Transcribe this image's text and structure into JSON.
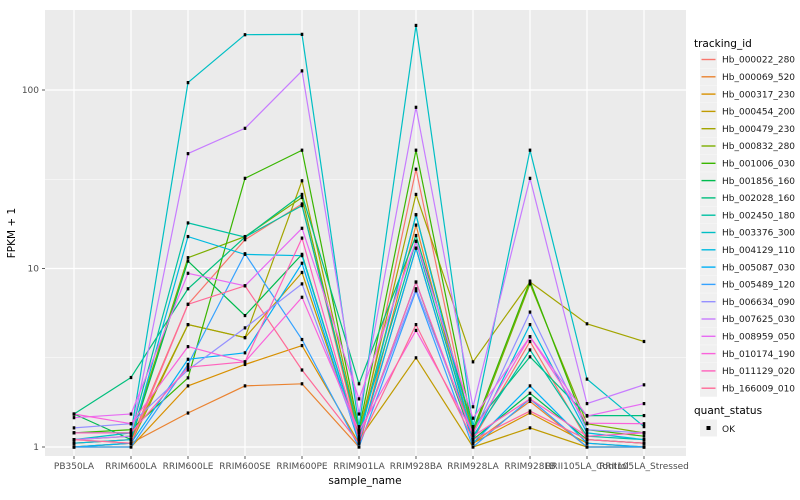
{
  "figure": {
    "legend": {
      "tracking_title": "tracking_id",
      "quant_title": "quant_status",
      "quant_items": [
        {
          "label": "OK",
          "marker": "black-square"
        }
      ]
    },
    "colors": {
      "panel_bg": "#EBEBEB",
      "grid": "#FFFFFF",
      "tick_text": "#4D4D4D",
      "point": "#000000",
      "legend_key_bg": "#F0F0F0"
    }
  },
  "chart_data": {
    "type": "line",
    "title": "",
    "xlabel": "sample_name",
    "ylabel": "FPKM + 1",
    "y_scale": "log10",
    "ylim": [
      1,
      280
    ],
    "y_ticks": [
      1,
      10,
      100
    ],
    "y_minor_ticks": [
      3.162,
      31.62
    ],
    "grid": true,
    "legend_position": "right",
    "point_marker": "small black square (quant_status = OK)",
    "categories": [
      "PB350LA",
      "RRIM600LA",
      "RRIM600LE",
      "RRIM600SE",
      "RRIM600PE",
      "RRIM901LA",
      "RRIM928BA",
      "RRIM928LA",
      "RRIM928LB",
      "RRII105LA_Control",
      "RRII105LA_Stressed"
    ],
    "series": [
      {
        "name": "Hb_000022_280",
        "color": "#F8766D",
        "values": [
          1.05,
          1.1,
          6.3,
          14.5,
          23,
          1.1,
          36,
          1.1,
          3.9,
          1.1,
          1.05
        ]
      },
      {
        "name": "Hb_000069_520",
        "color": "#EA8331",
        "values": [
          1.0,
          1.05,
          1.55,
          2.2,
          2.26,
          1.0,
          17.5,
          1.05,
          1.8,
          1.0,
          1.0
        ]
      },
      {
        "name": "Hb_000317_230",
        "color": "#D89000",
        "values": [
          1.0,
          1.0,
          2.2,
          2.9,
          3.7,
          1.05,
          13,
          1.05,
          1.55,
          1.05,
          1.0
        ]
      },
      {
        "name": "Hb_000454_200",
        "color": "#C09B00",
        "values": [
          1.05,
          1.1,
          4.85,
          4.1,
          9.5,
          1.1,
          3.16,
          1.0,
          1.28,
          1.0,
          1.0
        ]
      },
      {
        "name": "Hb_000479_230",
        "color": "#A3A500",
        "values": [
          1.0,
          1.05,
          4.85,
          4.1,
          31,
          1.2,
          26,
          3.0,
          8.4,
          4.9,
          3.9
        ]
      },
      {
        "name": "Hb_000832_280",
        "color": "#7CAE00",
        "values": [
          1.1,
          1.15,
          11.5,
          15.1,
          25,
          1.15,
          20,
          1.2,
          8.2,
          1.35,
          1.2
        ]
      },
      {
        "name": "Hb_001006_030",
        "color": "#39B600",
        "values": [
          1.2,
          1.25,
          2.44,
          32,
          46,
          1.25,
          46,
          1.25,
          8.5,
          1.25,
          1.15
        ]
      },
      {
        "name": "Hb_001856_160",
        "color": "#00BB4E",
        "values": [
          1.53,
          1.1,
          11,
          5.45,
          12,
          1.1,
          8.4,
          1.1,
          2.0,
          1.1,
          1.05
        ]
      },
      {
        "name": "Hb_002028_160",
        "color": "#00BF7D",
        "values": [
          1.53,
          2.45,
          7.7,
          15,
          26,
          2.26,
          15.3,
          1.3,
          3.2,
          1.5,
          1.5
        ]
      },
      {
        "name": "Hb_002450_180",
        "color": "#00C1A3",
        "values": [
          1.2,
          1.2,
          18,
          15,
          22.5,
          1.2,
          14.2,
          1.15,
          3.5,
          1.15,
          1.1
        ]
      },
      {
        "name": "Hb_003376_300",
        "color": "#00BFC4",
        "values": [
          1.1,
          1.2,
          110,
          204,
          205,
          1.3,
          230,
          1.3,
          46,
          2.4,
          1.3
        ]
      },
      {
        "name": "Hb_004129_110",
        "color": "#00BAE0",
        "values": [
          1.05,
          1.1,
          15.1,
          12,
          11.8,
          1.1,
          20,
          1.1,
          4.85,
          1.2,
          1.1
        ]
      },
      {
        "name": "Hb_005087_030",
        "color": "#00B0F6",
        "values": [
          1.0,
          1.05,
          3.1,
          3.37,
          10.7,
          1.05,
          13,
          1.05,
          2.2,
          1.05,
          1.0
        ]
      },
      {
        "name": "Hb_005489_120",
        "color": "#35A2FF",
        "values": [
          1.0,
          1.0,
          2.9,
          12.1,
          4.0,
          1.0,
          7.5,
          1.0,
          1.86,
          1.0,
          1.0
        ]
      },
      {
        "name": "Hb_006634_090",
        "color": "#9590FF",
        "values": [
          1.28,
          1.35,
          2.7,
          4.65,
          8.2,
          1.12,
          7.7,
          1.18,
          5.7,
          1.25,
          1.2
        ]
      },
      {
        "name": "Hb_007625_030",
        "color": "#C77CFF",
        "values": [
          1.1,
          1.15,
          44,
          61,
          128,
          1.53,
          80,
          1.68,
          32,
          1.75,
          2.23
        ]
      },
      {
        "name": "Hb_008959_050",
        "color": "#E76BF3",
        "values": [
          1.46,
          1.53,
          9.4,
          8.0,
          16.8,
          1.86,
          14.2,
          1.45,
          4.15,
          1.49,
          1.75
        ]
      },
      {
        "name": "Hb_010174_190",
        "color": "#FA62DB",
        "values": [
          1.53,
          1.35,
          3.65,
          3.0,
          6.9,
          1.23,
          4.5,
          1.2,
          4.15,
          1.36,
          1.35
        ]
      },
      {
        "name": "Hb_011129_020",
        "color": "#FF62BC",
        "values": [
          1.2,
          1.2,
          2.8,
          3.0,
          14.8,
          1.1,
          8.4,
          1.15,
          1.86,
          1.15,
          1.2
        ]
      },
      {
        "name": "Hb_166009_010",
        "color": "#FF6A98",
        "values": [
          1.1,
          1.05,
          6.3,
          8.0,
          2.7,
          1.05,
          4.85,
          1.1,
          1.59,
          1.1,
          1.05
        ]
      }
    ]
  }
}
